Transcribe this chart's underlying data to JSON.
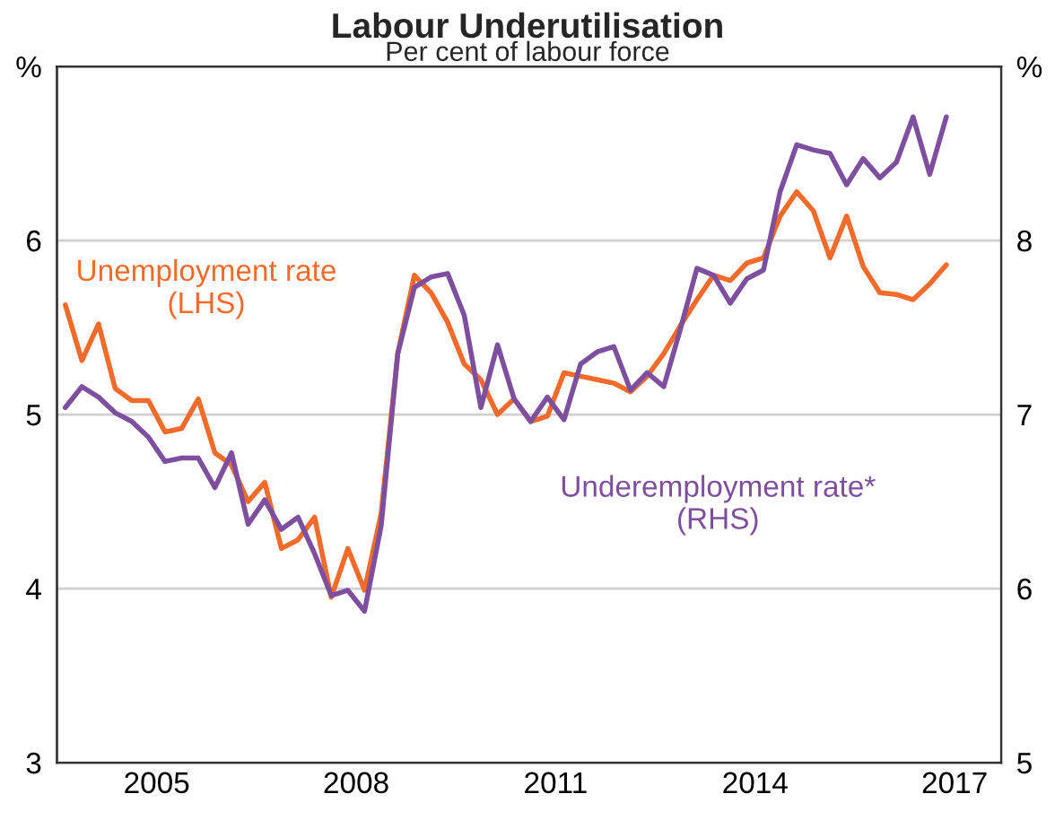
{
  "chart_data": {
    "type": "line",
    "title": "Labour Underutilisation",
    "subtitle": "Per cent of labour force",
    "x": [
      2003.625,
      2003.875,
      2004.125,
      2004.375,
      2004.625,
      2004.875,
      2005.125,
      2005.375,
      2005.625,
      2005.875,
      2006.125,
      2006.375,
      2006.625,
      2006.875,
      2007.125,
      2007.375,
      2007.625,
      2007.875,
      2008.125,
      2008.375,
      2008.625,
      2008.875,
      2009.125,
      2009.375,
      2009.625,
      2009.875,
      2010.125,
      2010.375,
      2010.625,
      2010.875,
      2011.125,
      2011.375,
      2011.625,
      2011.875,
      2012.125,
      2012.375,
      2012.625,
      2012.875,
      2013.125,
      2013.375,
      2013.625,
      2013.875,
      2014.125,
      2014.375,
      2014.625,
      2014.875,
      2015.125,
      2015.375,
      2015.625,
      2015.875,
      2016.125,
      2016.375,
      2016.625,
      2016.875
    ],
    "series": [
      {
        "name": "Unemployment rate\n(LHS)",
        "color": "#f26b2a",
        "values": [
          5.63,
          5.31,
          5.52,
          5.15,
          5.08,
          5.08,
          4.9,
          4.92,
          5.09,
          4.78,
          4.71,
          4.5,
          4.61,
          4.23,
          4.28,
          4.41,
          3.95,
          4.23,
          3.99,
          4.43,
          5.35,
          5.8,
          5.7,
          5.53,
          5.29,
          5.2,
          5.0,
          5.09,
          4.96,
          4.99,
          5.24,
          5.22,
          5.2,
          5.18,
          5.13,
          5.22,
          5.35,
          5.51,
          5.66,
          5.8,
          5.77,
          5.87,
          5.9,
          6.14,
          6.28,
          6.17,
          5.9,
          6.14,
          5.85,
          5.7,
          5.69,
          5.66,
          5.75,
          5.86
        ]
      },
      {
        "name": "Underemployment rate*\n(RHS)",
        "color": "#7d4f9e",
        "axis": "y2",
        "values": [
          7.04,
          7.16,
          7.1,
          7.01,
          6.96,
          6.87,
          6.73,
          6.75,
          6.75,
          6.58,
          6.78,
          6.37,
          6.51,
          6.34,
          6.41,
          6.2,
          5.96,
          5.99,
          5.87,
          6.36,
          7.35,
          7.73,
          7.79,
          7.81,
          7.57,
          7.04,
          7.4,
          7.09,
          6.96,
          7.1,
          6.97,
          7.29,
          7.36,
          7.39,
          7.14,
          7.24,
          7.16,
          7.49,
          7.84,
          7.8,
          7.64,
          7.78,
          7.83,
          8.28,
          8.55,
          8.52,
          8.5,
          8.32,
          8.47,
          8.36,
          8.45,
          8.71,
          8.38,
          8.71
        ]
      }
    ],
    "xlim": [
      2003.5,
      2017.7
    ],
    "xticks": [
      2005,
      2008,
      2011,
      2014,
      2017
    ],
    "ylim": [
      3,
      7
    ],
    "yticks": [
      3,
      4,
      5,
      6,
      {
        "value": 7,
        "label": "%"
      }
    ],
    "y2lim": [
      5,
      9
    ],
    "y2ticks": [
      5,
      6,
      7,
      8,
      {
        "value": 9,
        "label": "%"
      }
    ],
    "grid": "y",
    "legend": false
  }
}
